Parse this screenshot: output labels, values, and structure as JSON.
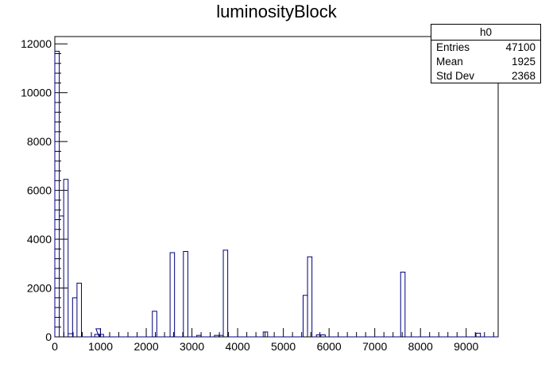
{
  "chart_data": {
    "type": "histogram",
    "title": "luminosityBlock",
    "xlabel": "",
    "ylabel": "",
    "xlim": [
      0,
      9700
    ],
    "ylim": [
      0,
      12300
    ],
    "bin_width": 97,
    "x_ticks": [
      0,
      1000,
      2000,
      3000,
      4000,
      5000,
      6000,
      7000,
      8000,
      9000
    ],
    "x_tick_labels": [
      "0",
      "1000",
      "2000",
      "3000",
      "4000",
      "5000",
      "6000",
      "7000",
      "8000",
      "9000"
    ],
    "y_ticks": [
      0,
      2000,
      4000,
      6000,
      8000,
      10000,
      12000
    ],
    "y_tick_labels": [
      "0",
      "2000",
      "4000",
      "6000",
      "8000",
      "10000",
      "12000"
    ],
    "line_color": "#000080",
    "bins": [
      {
        "x": 0,
        "y": 11700
      },
      {
        "x": 97,
        "y": 4950
      },
      {
        "x": 194,
        "y": 6450
      },
      {
        "x": 291,
        "y": 130
      },
      {
        "x": 388,
        "y": 1600
      },
      {
        "x": 485,
        "y": 2200
      },
      {
        "x": 873,
        "y": 100
      },
      {
        "x": 900,
        "y": 330
      },
      {
        "x": 970,
        "y": 100
      },
      {
        "x": 2134,
        "y": 1050
      },
      {
        "x": 2522,
        "y": 3450
      },
      {
        "x": 2813,
        "y": 3500
      },
      {
        "x": 3104,
        "y": 60
      },
      {
        "x": 3492,
        "y": 60
      },
      {
        "x": 3589,
        "y": 60
      },
      {
        "x": 3686,
        "y": 3550
      },
      {
        "x": 4559,
        "y": 200
      },
      {
        "x": 5432,
        "y": 1700
      },
      {
        "x": 5529,
        "y": 3280
      },
      {
        "x": 5723,
        "y": 80
      },
      {
        "x": 5820,
        "y": 80
      },
      {
        "x": 7566,
        "y": 2650
      },
      {
        "x": 9215,
        "y": 150
      }
    ]
  },
  "stats": {
    "name": "h0",
    "rows": [
      {
        "label": "Entries",
        "value": "47100"
      },
      {
        "label": "Mean",
        "value": "1925"
      },
      {
        "label": "Std Dev",
        "value": "2368"
      }
    ]
  }
}
